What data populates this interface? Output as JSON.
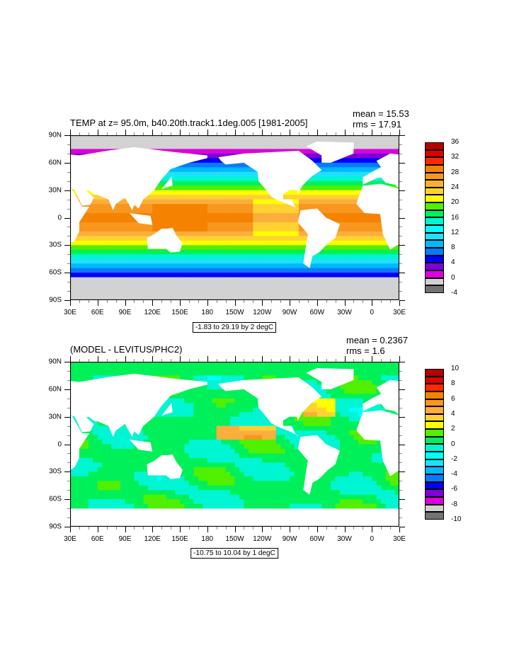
{
  "plots": [
    {
      "title": "TEMP at z=  95.0m, b40.20th.track1.1deg.005 [1981-2005]",
      "mean": "mean = 15.53",
      "rms": "rms = 17.91",
      "info": "-1.83 to 29.19 by 2 degC",
      "colorbar_labels": [
        "36",
        "32",
        "28",
        "24",
        "20",
        "16",
        "12",
        "8",
        "4",
        "0",
        "-4"
      ]
    },
    {
      "title": "(MODEL - LEVITUS/PHC2)",
      "mean": "mean = 0.2367",
      "rms": "rms = 1.6",
      "info": "-10.75 to 10.04 by 1 degC",
      "colorbar_labels": [
        "10",
        "8",
        "6",
        "4",
        "2",
        "0",
        "-2",
        "-4",
        "-6",
        "-8",
        "-10"
      ]
    }
  ],
  "lon_labels": [
    "30E",
    "60E",
    "90E",
    "120E",
    "150E",
    "180",
    "150W",
    "120W",
    "90W",
    "60W",
    "30W",
    "0",
    "30E"
  ],
  "lat_labels": [
    "90N",
    "60N",
    "30N",
    "0",
    "30S",
    "60S",
    "90S"
  ],
  "colors": [
    "#b40000",
    "#dc0000",
    "#ff2800",
    "#f58200",
    "#f9961e",
    "#fbae3c",
    "#ffd232",
    "#ffff00",
    "#50f000",
    "#00f05a",
    "#00f5d2",
    "#00ffff",
    "#1ee1ff",
    "#00b9ff",
    "#0a78ff",
    "#0000ff",
    "#7d00d7",
    "#dc00dc",
    "#d2d2d2",
    "#737373"
  ],
  "chart_data": [
    {
      "type": "heatmap",
      "title": "TEMP at z=  95.0m, b40.20th.track1.1deg.005 [1981-2005]",
      "units": "degC",
      "levels_min": -4,
      "levels_max": 36,
      "level_step": 2,
      "data_min": -1.83,
      "data_max": 29.19,
      "mean": 15.53,
      "rms": 17.91,
      "xlim": [
        30,
        390
      ],
      "ylim": [
        -90,
        90
      ]
    },
    {
      "type": "heatmap",
      "title": "(MODEL - LEVITUS/PHC2)",
      "units": "degC",
      "levels_min": -10,
      "levels_max": 10,
      "level_step": 1,
      "data_min": -10.75,
      "data_max": 10.04,
      "mean": 0.2367,
      "rms": 1.6,
      "xlim": [
        30,
        390
      ],
      "ylim": [
        -90,
        90
      ]
    }
  ]
}
